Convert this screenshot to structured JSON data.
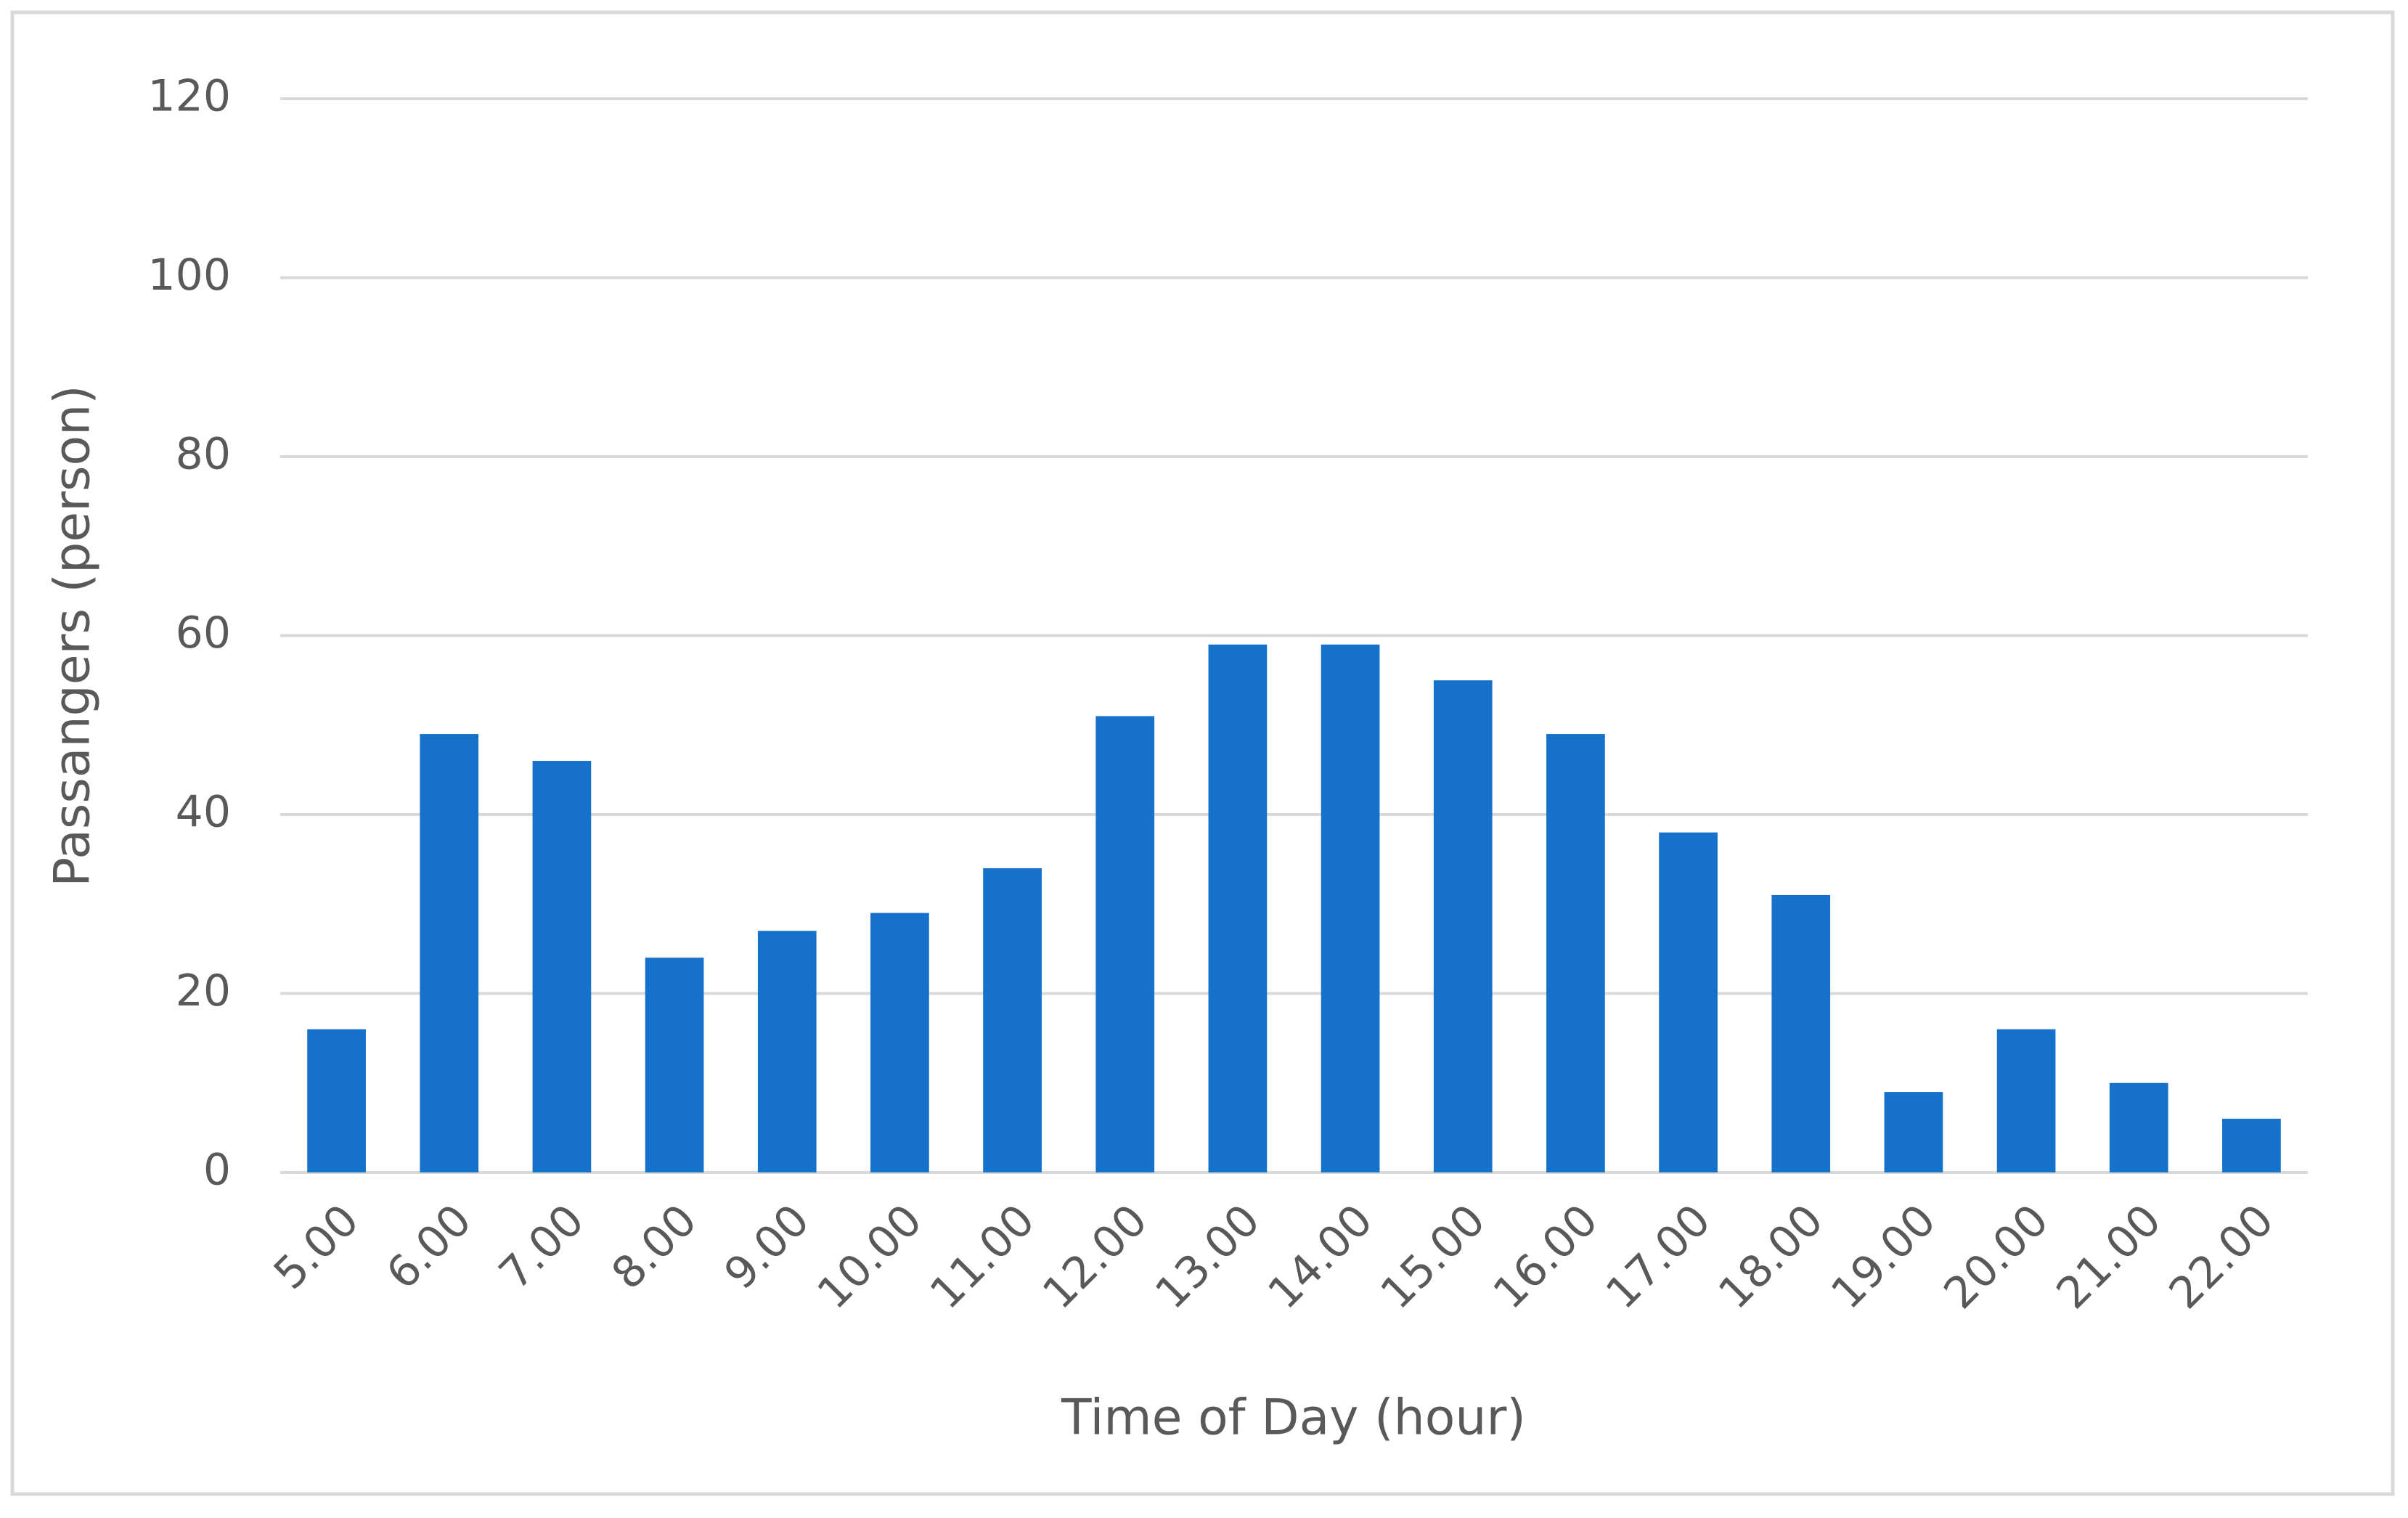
{
  "chart_data": {
    "type": "bar",
    "xlabel": "Time of Day (hour)",
    "ylabel": "Passangers (person)",
    "categories": [
      "5.00",
      "6.00",
      "7.00",
      "8.00",
      "9.00",
      "10.00",
      "11.00",
      "12.00",
      "13.00",
      "14.00",
      "15.00",
      "16.00",
      "17.00",
      "18.00",
      "19.00",
      "20.00",
      "21.00",
      "22.00"
    ],
    "values": [
      16,
      49,
      46,
      24,
      27,
      29,
      34,
      51,
      59,
      59,
      55,
      49,
      38,
      31,
      9,
      16,
      10,
      6
    ],
    "color": "#1571c9",
    "ylim": [
      0,
      120
    ],
    "yticks": [
      0,
      20,
      40,
      60,
      80,
      100,
      120
    ],
    "grid": true
  }
}
